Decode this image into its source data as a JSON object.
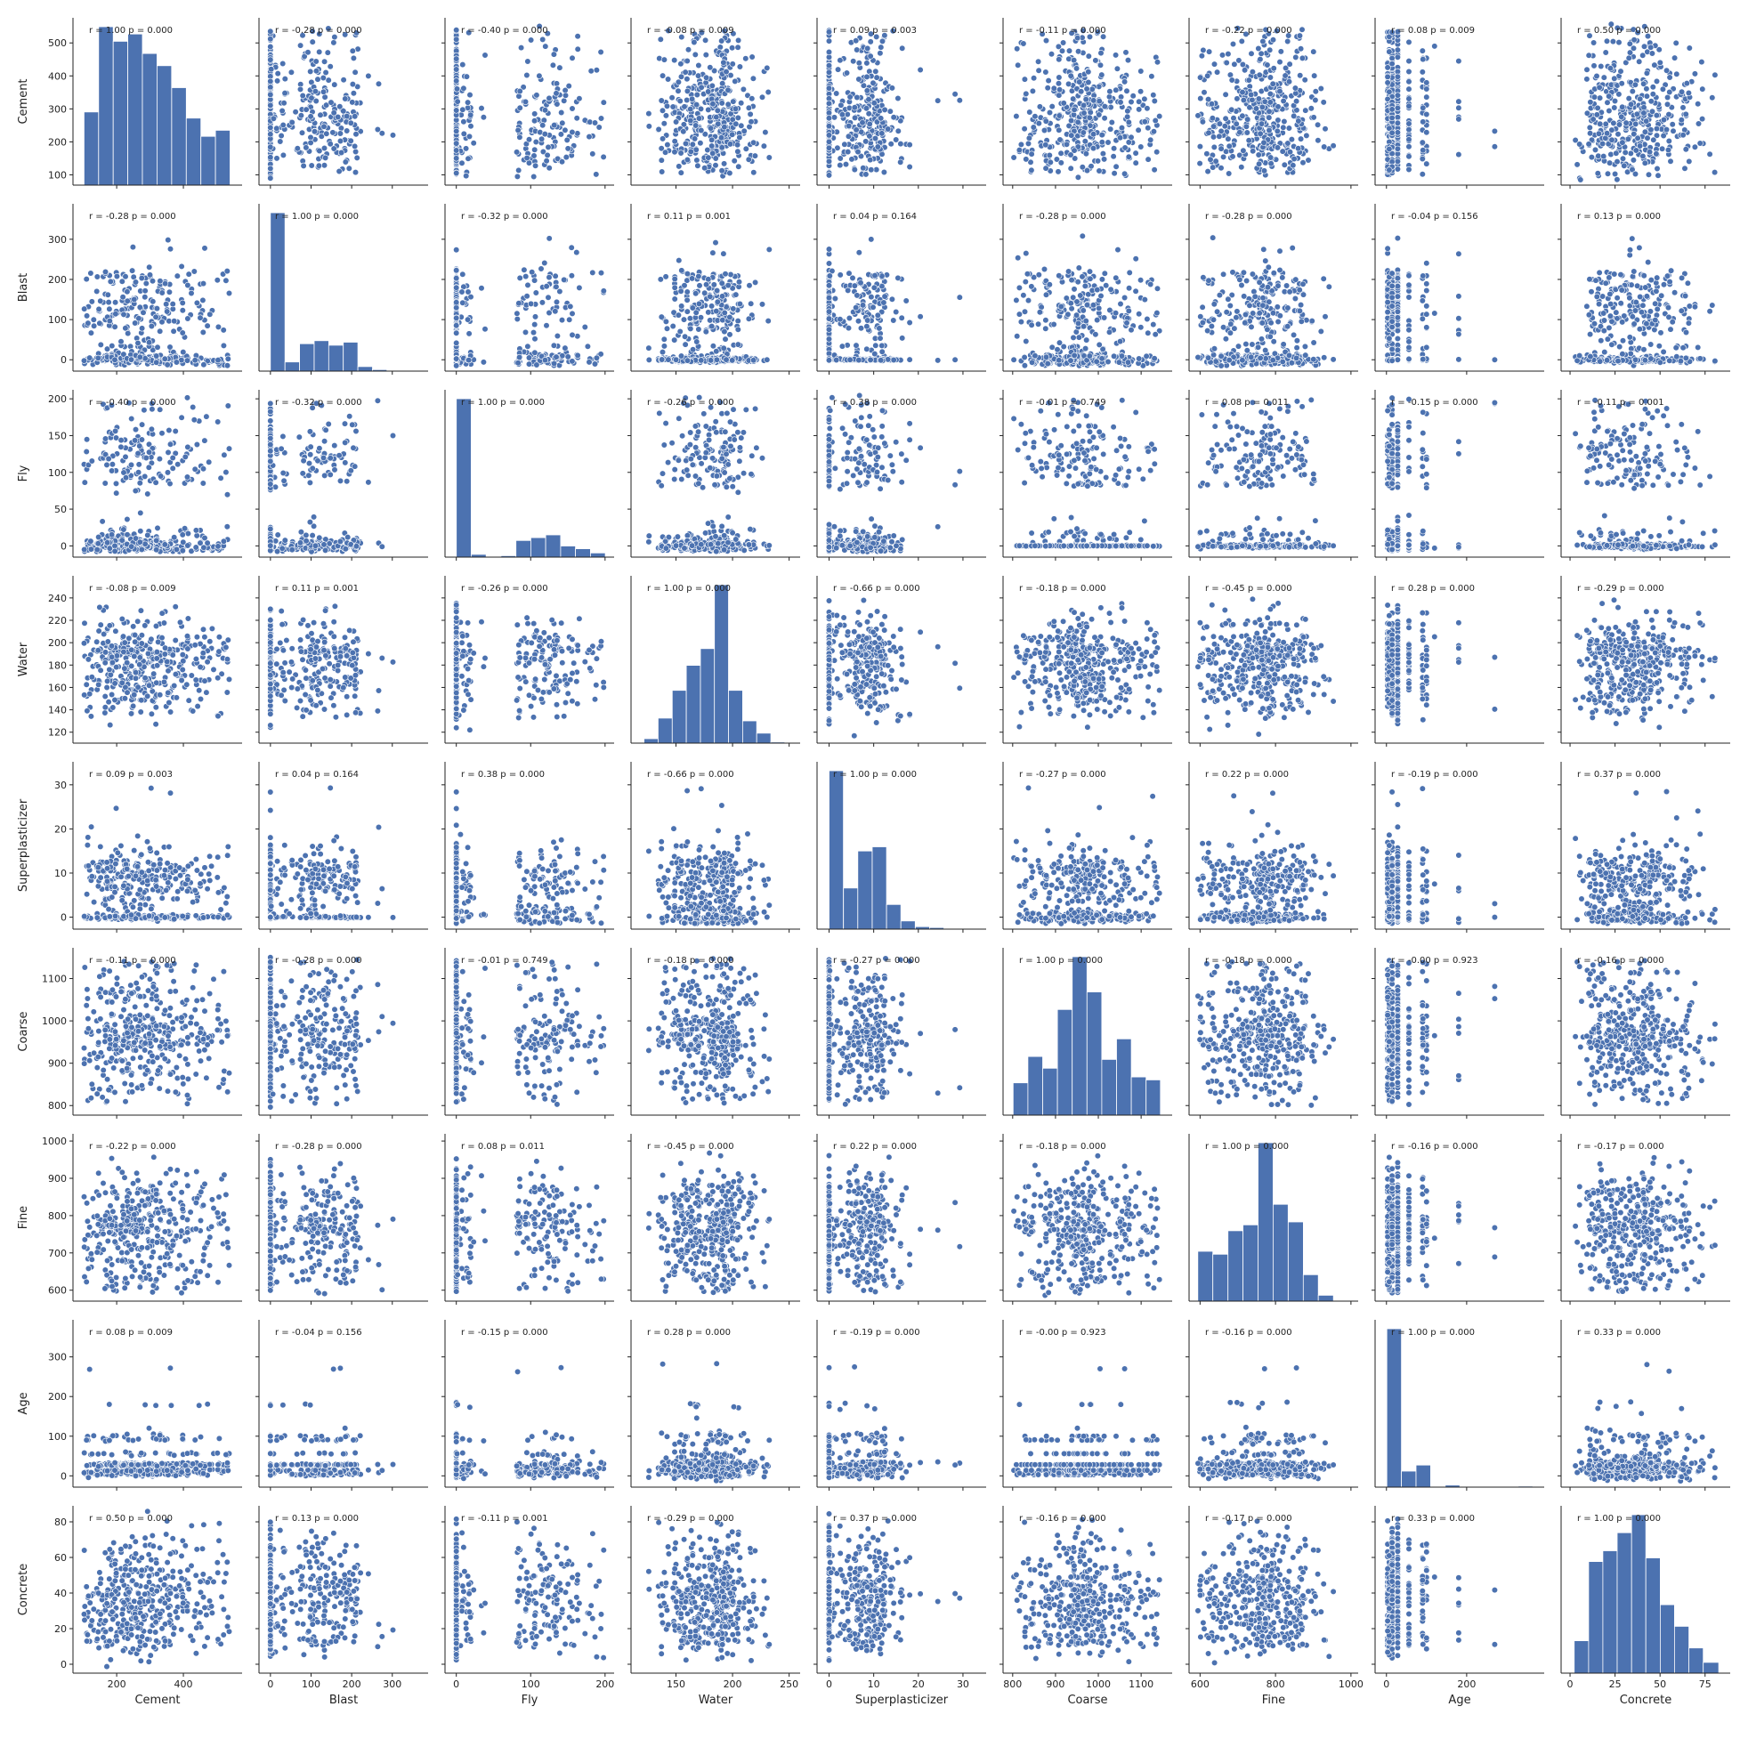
{
  "chart_data": {
    "type": "pairplot",
    "variables": [
      "Cement",
      "Blast",
      "Fly",
      "Water",
      "Superplasticizer",
      "Coarse",
      "Fine",
      "Age",
      "Concrete"
    ],
    "axes": {
      "Cement": {
        "lim": [
          85,
          560
        ],
        "ticks": [
          100,
          200,
          300,
          400,
          500
        ],
        "xticks": [
          200,
          400
        ]
      },
      "Blast": {
        "lim": [
          -15,
          375
        ],
        "ticks": [
          0,
          100,
          200,
          300
        ],
        "xticks": [
          0,
          100,
          200,
          300
        ]
      },
      "Fly": {
        "lim": [
          -8,
          205
        ],
        "ticks": [
          0,
          50,
          100,
          150,
          200
        ],
        "xticks": [
          0,
          100,
          200
        ]
      },
      "Water": {
        "lim": [
          115,
          255
        ],
        "ticks": [
          120,
          140,
          160,
          180,
          200,
          220,
          240
        ],
        "xticks": [
          150,
          200,
          250
        ]
      },
      "Superplasticizer": {
        "lim": [
          -1.5,
          34
        ],
        "ticks": [
          0,
          10,
          20,
          30
        ],
        "xticks": [
          0,
          10,
          20,
          30
        ]
      },
      "Coarse": {
        "lim": [
          790,
          1160
        ],
        "ticks": [
          800,
          900,
          1000,
          1100
        ],
        "xticks": [
          800,
          900,
          1000,
          1100
        ]
      },
      "Fine": {
        "lim": [
          585,
          1005
        ],
        "ticks": [
          600,
          700,
          800,
          900,
          1000
        ],
        "xticks": [
          600,
          800,
          1000
        ]
      },
      "Age": {
        "lim": [
          -15,
          380
        ],
        "ticks": [
          0,
          100,
          200,
          300
        ],
        "xticks": [
          0,
          200
        ]
      },
      "Concrete": {
        "lim": [
          -2,
          86
        ],
        "ticks": [
          0,
          20,
          40,
          60,
          80
        ],
        "xticks": [
          0,
          25,
          50,
          75
        ]
      }
    },
    "correlations": [
      [
        "r = 1.00 p = 0.000",
        "r = -0.28 p = 0.000",
        "r = -0.40 p = 0.000",
        "r = -0.08 p = 0.009",
        "r = 0.09 p = 0.003",
        "r = -0.11 p = 0.000",
        "r = -0.22 p = 0.000",
        "r = 0.08 p = 0.009",
        "r = 0.50 p = 0.000"
      ],
      [
        "r = -0.28 p = 0.000",
        "r = 1.00 p = 0.000",
        "r = -0.32 p = 0.000",
        "r = 0.11 p = 0.001",
        "r = 0.04 p = 0.164",
        "r = -0.28 p = 0.000",
        "r = -0.28 p = 0.000",
        "r = -0.04 p = 0.156",
        "r = 0.13 p = 0.000"
      ],
      [
        "r = -0.40 p = 0.000",
        "r = -0.32 p = 0.000",
        "r = 1.00 p = 0.000",
        "r = -0.26 p = 0.000",
        "r = 0.38 p = 0.000",
        "r = -0.01 p = 0.749",
        "r = 0.08 p = 0.011",
        "r = -0.15 p = 0.000",
        "r = -0.11 p = 0.001"
      ],
      [
        "r = -0.08 p = 0.009",
        "r = 0.11 p = 0.001",
        "r = -0.26 p = 0.000",
        "r = 1.00 p = 0.000",
        "r = -0.66 p = 0.000",
        "r = -0.18 p = 0.000",
        "r = -0.45 p = 0.000",
        "r = 0.28 p = 0.000",
        "r = -0.29 p = 0.000"
      ],
      [
        "r = 0.09 p = 0.003",
        "r = 0.04 p = 0.164",
        "r = 0.38 p = 0.000",
        "r = -0.66 p = 0.000",
        "r = 1.00 p = 0.000",
        "r = -0.27 p = 0.000",
        "r = 0.22 p = 0.000",
        "r = -0.19 p = 0.000",
        "r = 0.37 p = 0.000"
      ],
      [
        "r = -0.11 p = 0.000",
        "r = -0.28 p = 0.000",
        "r = -0.01 p = 0.749",
        "r = -0.18 p = 0.000",
        "r = -0.27 p = 0.000",
        "r = 1.00 p = 0.000",
        "r = -0.18 p = 0.000",
        "r = -0.00 p = 0.923",
        "r = -0.16 p = 0.000"
      ],
      [
        "r = -0.22 p = 0.000",
        "r = -0.28 p = 0.000",
        "r = 0.08 p = 0.011",
        "r = -0.45 p = 0.000",
        "r = 0.22 p = 0.000",
        "r = -0.18 p = 0.000",
        "r = 1.00 p = 0.000",
        "r = -0.16 p = 0.000",
        "r = -0.17 p = 0.000"
      ],
      [
        "r = 0.08 p = 0.009",
        "r = -0.04 p = 0.156",
        "r = -0.15 p = 0.000",
        "r = 0.28 p = 0.000",
        "r = -0.19 p = 0.000",
        "r = -0.00 p = 0.923",
        "r = -0.16 p = 0.000",
        "r = 1.00 p = 0.000",
        "r = 0.33 p = 0.000"
      ],
      [
        "r = 0.50 p = 0.000",
        "r = 0.13 p = 0.000",
        "r = -0.11 p = 0.001",
        "r = -0.29 p = 0.000",
        "r = 0.37 p = 0.000",
        "r = -0.16 p = 0.000",
        "r = -0.17 p = 0.000",
        "r = 0.33 p = 0.000",
        "r = 1.00 p = 0.000"
      ]
    ],
    "histograms": {
      "Cement": {
        "edges": [
          102,
          145.8,
          189.6,
          233.4,
          277.2,
          321.0,
          364.8,
          408.6,
          452.4,
          496.2,
          540
        ],
        "counts": [
          60,
          130,
          118,
          124,
          108,
          98,
          80,
          55,
          40,
          45
        ]
      },
      "Blast": {
        "edges": [
          0,
          35.9,
          71.8,
          107.6,
          143.5,
          179.4,
          215.3,
          251.2,
          287.0,
          322.9,
          358.8
        ],
        "counts": [
          520,
          30,
          90,
          100,
          85,
          95,
          15,
          5,
          2,
          0
        ]
      },
      "Fly": {
        "edges": [
          0,
          20.0,
          40.1,
          60.1,
          80.2,
          100.2,
          120.2,
          140.3,
          160.3,
          180.4,
          200.4
        ],
        "counts": [
          570,
          10,
          0,
          5,
          60,
          70,
          80,
          40,
          30,
          15
        ]
      },
      "Water": {
        "edges": [
          121.8,
          134.2,
          146.7,
          159.1,
          171.6,
          184.0,
          196.4,
          208.9,
          221.3,
          233.8,
          246.2
        ],
        "counts": [
          8,
          45,
          95,
          140,
          170,
          285,
          95,
          40,
          18,
          2
        ]
      },
      "Superplasticizer": {
        "edges": [
          0,
          3.22,
          6.44,
          9.66,
          12.88,
          16.1,
          19.32,
          22.54,
          25.76,
          28.98,
          32.2
        ],
        "counts": [
          385,
          100,
          190,
          200,
          60,
          20,
          6,
          4,
          1,
          2
        ]
      },
      "Coarse": {
        "edges": [
          801,
          835.5,
          870.0,
          904.5,
          939.0,
          973.5,
          1008.0,
          1042.5,
          1077.0,
          1111.5,
          1145
        ],
        "counts": [
          55,
          100,
          80,
          180,
          270,
          210,
          95,
          130,
          65,
          60
        ]
      },
      "Fine": {
        "edges": [
          594,
          633.9,
          673.9,
          713.8,
          753.8,
          793.7,
          833.6,
          873.6,
          913.5,
          953.5,
          992.6
        ],
        "counts": [
          85,
          80,
          120,
          130,
          270,
          165,
          135,
          45,
          10,
          0
        ]
      },
      "Age": {
        "edges": [
          1,
          37.4,
          73.8,
          110.2,
          146.6,
          183.0,
          219.4,
          255.8,
          292.2,
          328.6,
          365
        ],
        "counts": [
          790,
          80,
          110,
          0,
          10,
          0,
          0,
          2,
          0,
          5
        ]
      },
      "Concrete": {
        "edges": [
          2.3,
          10.3,
          18.2,
          26.2,
          34.2,
          42.1,
          50.1,
          58.0,
          66.0,
          74.0,
          82.6
        ],
        "counts": [
          45,
          155,
          170,
          195,
          220,
          160,
          95,
          65,
          35,
          15
        ]
      }
    }
  }
}
